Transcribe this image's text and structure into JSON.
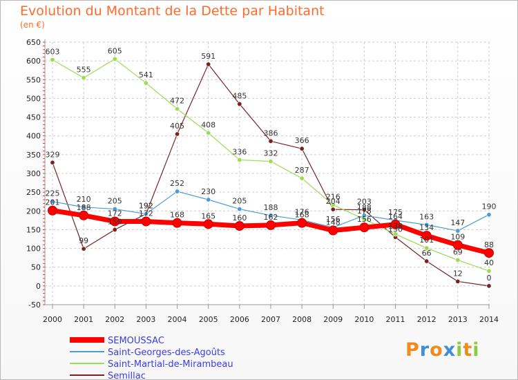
{
  "chart_data": {
    "type": "line",
    "title": "Evolution du Montant de la Dette par Habitant",
    "unit_label": "(en €)",
    "x": [
      "2000",
      "2001",
      "2002",
      "2003",
      "2004",
      "2005",
      "2006",
      "2007",
      "2008",
      "2009",
      "2010",
      "2011",
      "2012",
      "2013",
      "2014"
    ],
    "y_ticks": [
      650,
      600,
      550,
      500,
      450,
      400,
      350,
      300,
      250,
      200,
      150,
      100,
      50,
      0,
      -50
    ],
    "ylim": [
      -50,
      650
    ],
    "grid": true,
    "legend_position": "bottom-left",
    "series": [
      {
        "name": "SEMOUSSAC",
        "color": "#ff0000",
        "values": [
          201,
          188,
          172,
          172,
          168,
          165,
          160,
          162,
          168,
          148,
          156,
          164,
          134,
          109,
          88
        ]
      },
      {
        "name": "Saint-Georges-des-Agoûts",
        "color": "#4a9bd6",
        "values": [
          225,
          210,
          205,
          192,
          252,
          230,
          205,
          188,
          176,
          156,
          188,
          175,
          163,
          147,
          190
        ]
      },
      {
        "name": "Saint-Martial-de-Mirambeau",
        "color": "#99dd55",
        "values": [
          603,
          555,
          605,
          541,
          472,
          408,
          336,
          332,
          287,
          216,
          178,
          138,
          101,
          69,
          40
        ]
      },
      {
        "name": "Semillac",
        "color": "#7a2222",
        "values": [
          329,
          99,
          150,
          192,
          405,
          591,
          485,
          386,
          366,
          204,
          203,
          130,
          66,
          12,
          0
        ]
      }
    ]
  },
  "logo": {
    "text": [
      "P",
      "r",
      "o",
      "x",
      "i",
      "t",
      "i"
    ],
    "colors": [
      "#f08c1e",
      "#3e8ed8",
      "#f08c1e",
      "#3e8ed8",
      "#8ccc3c",
      "#f08c1e",
      "#8ccc3c"
    ]
  }
}
